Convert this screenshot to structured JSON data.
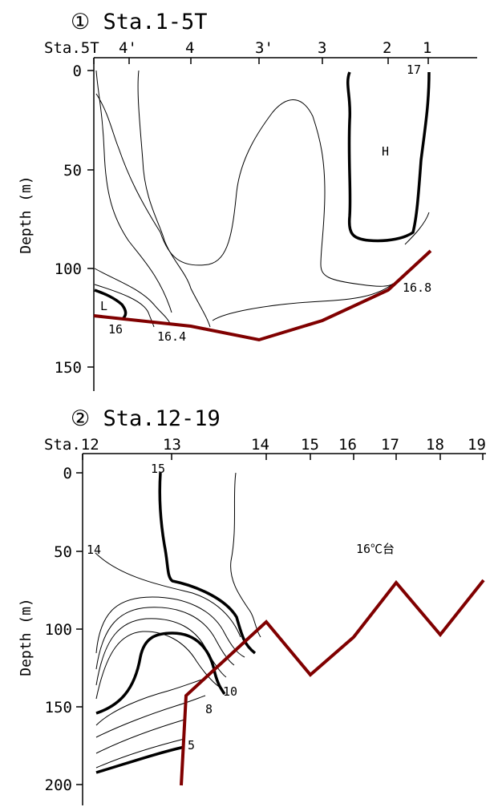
{
  "chart_data": [
    {
      "type": "contour",
      "title": "① Sta.1-5T",
      "ylabel": "Depth (m)",
      "ylim": [
        0,
        150
      ],
      "y_reversed": true,
      "yticks": [
        "0",
        "50",
        "100",
        "150"
      ],
      "stations": [
        "Sta.5T",
        "4'",
        "4",
        "3'",
        "3",
        "2",
        "1"
      ],
      "isotherm_labels": [
        "17",
        "16.8",
        "16.4",
        "16"
      ],
      "region_labels": [
        "H",
        "L"
      ],
      "bottom_depth": [
        {
          "station": "Sta.5T",
          "depth": 125
        },
        {
          "station": "4",
          "depth": 130
        },
        {
          "station": "3'",
          "depth": 137
        },
        {
          "station": "3",
          "depth": 127
        },
        {
          "station": "2",
          "depth": 112
        },
        {
          "station": "1",
          "depth": 91
        }
      ]
    },
    {
      "type": "contour",
      "title": "② Sta.12-19",
      "ylabel": "Depth (m)",
      "ylim": [
        0,
        200
      ],
      "y_reversed": true,
      "yticks": [
        "0",
        "50",
        "100",
        "150",
        "200"
      ],
      "stations": [
        "Sta.12",
        "13",
        "14",
        "15",
        "16",
        "17",
        "18",
        "19"
      ],
      "isotherm_labels": [
        "15",
        "14",
        "10",
        "8",
        "5"
      ],
      "region_labels": [
        "16℃台"
      ],
      "bottom_depth": [
        {
          "station": "13",
          "depth": 200
        },
        {
          "station": "13",
          "depth": 158
        },
        {
          "station": "14",
          "depth": 111
        },
        {
          "station": "15",
          "depth": 128
        },
        {
          "station": "16",
          "depth": 105
        },
        {
          "station": "17",
          "depth": 70
        },
        {
          "station": "18",
          "depth": 102
        },
        {
          "station": "19",
          "depth": 69
        }
      ]
    }
  ]
}
